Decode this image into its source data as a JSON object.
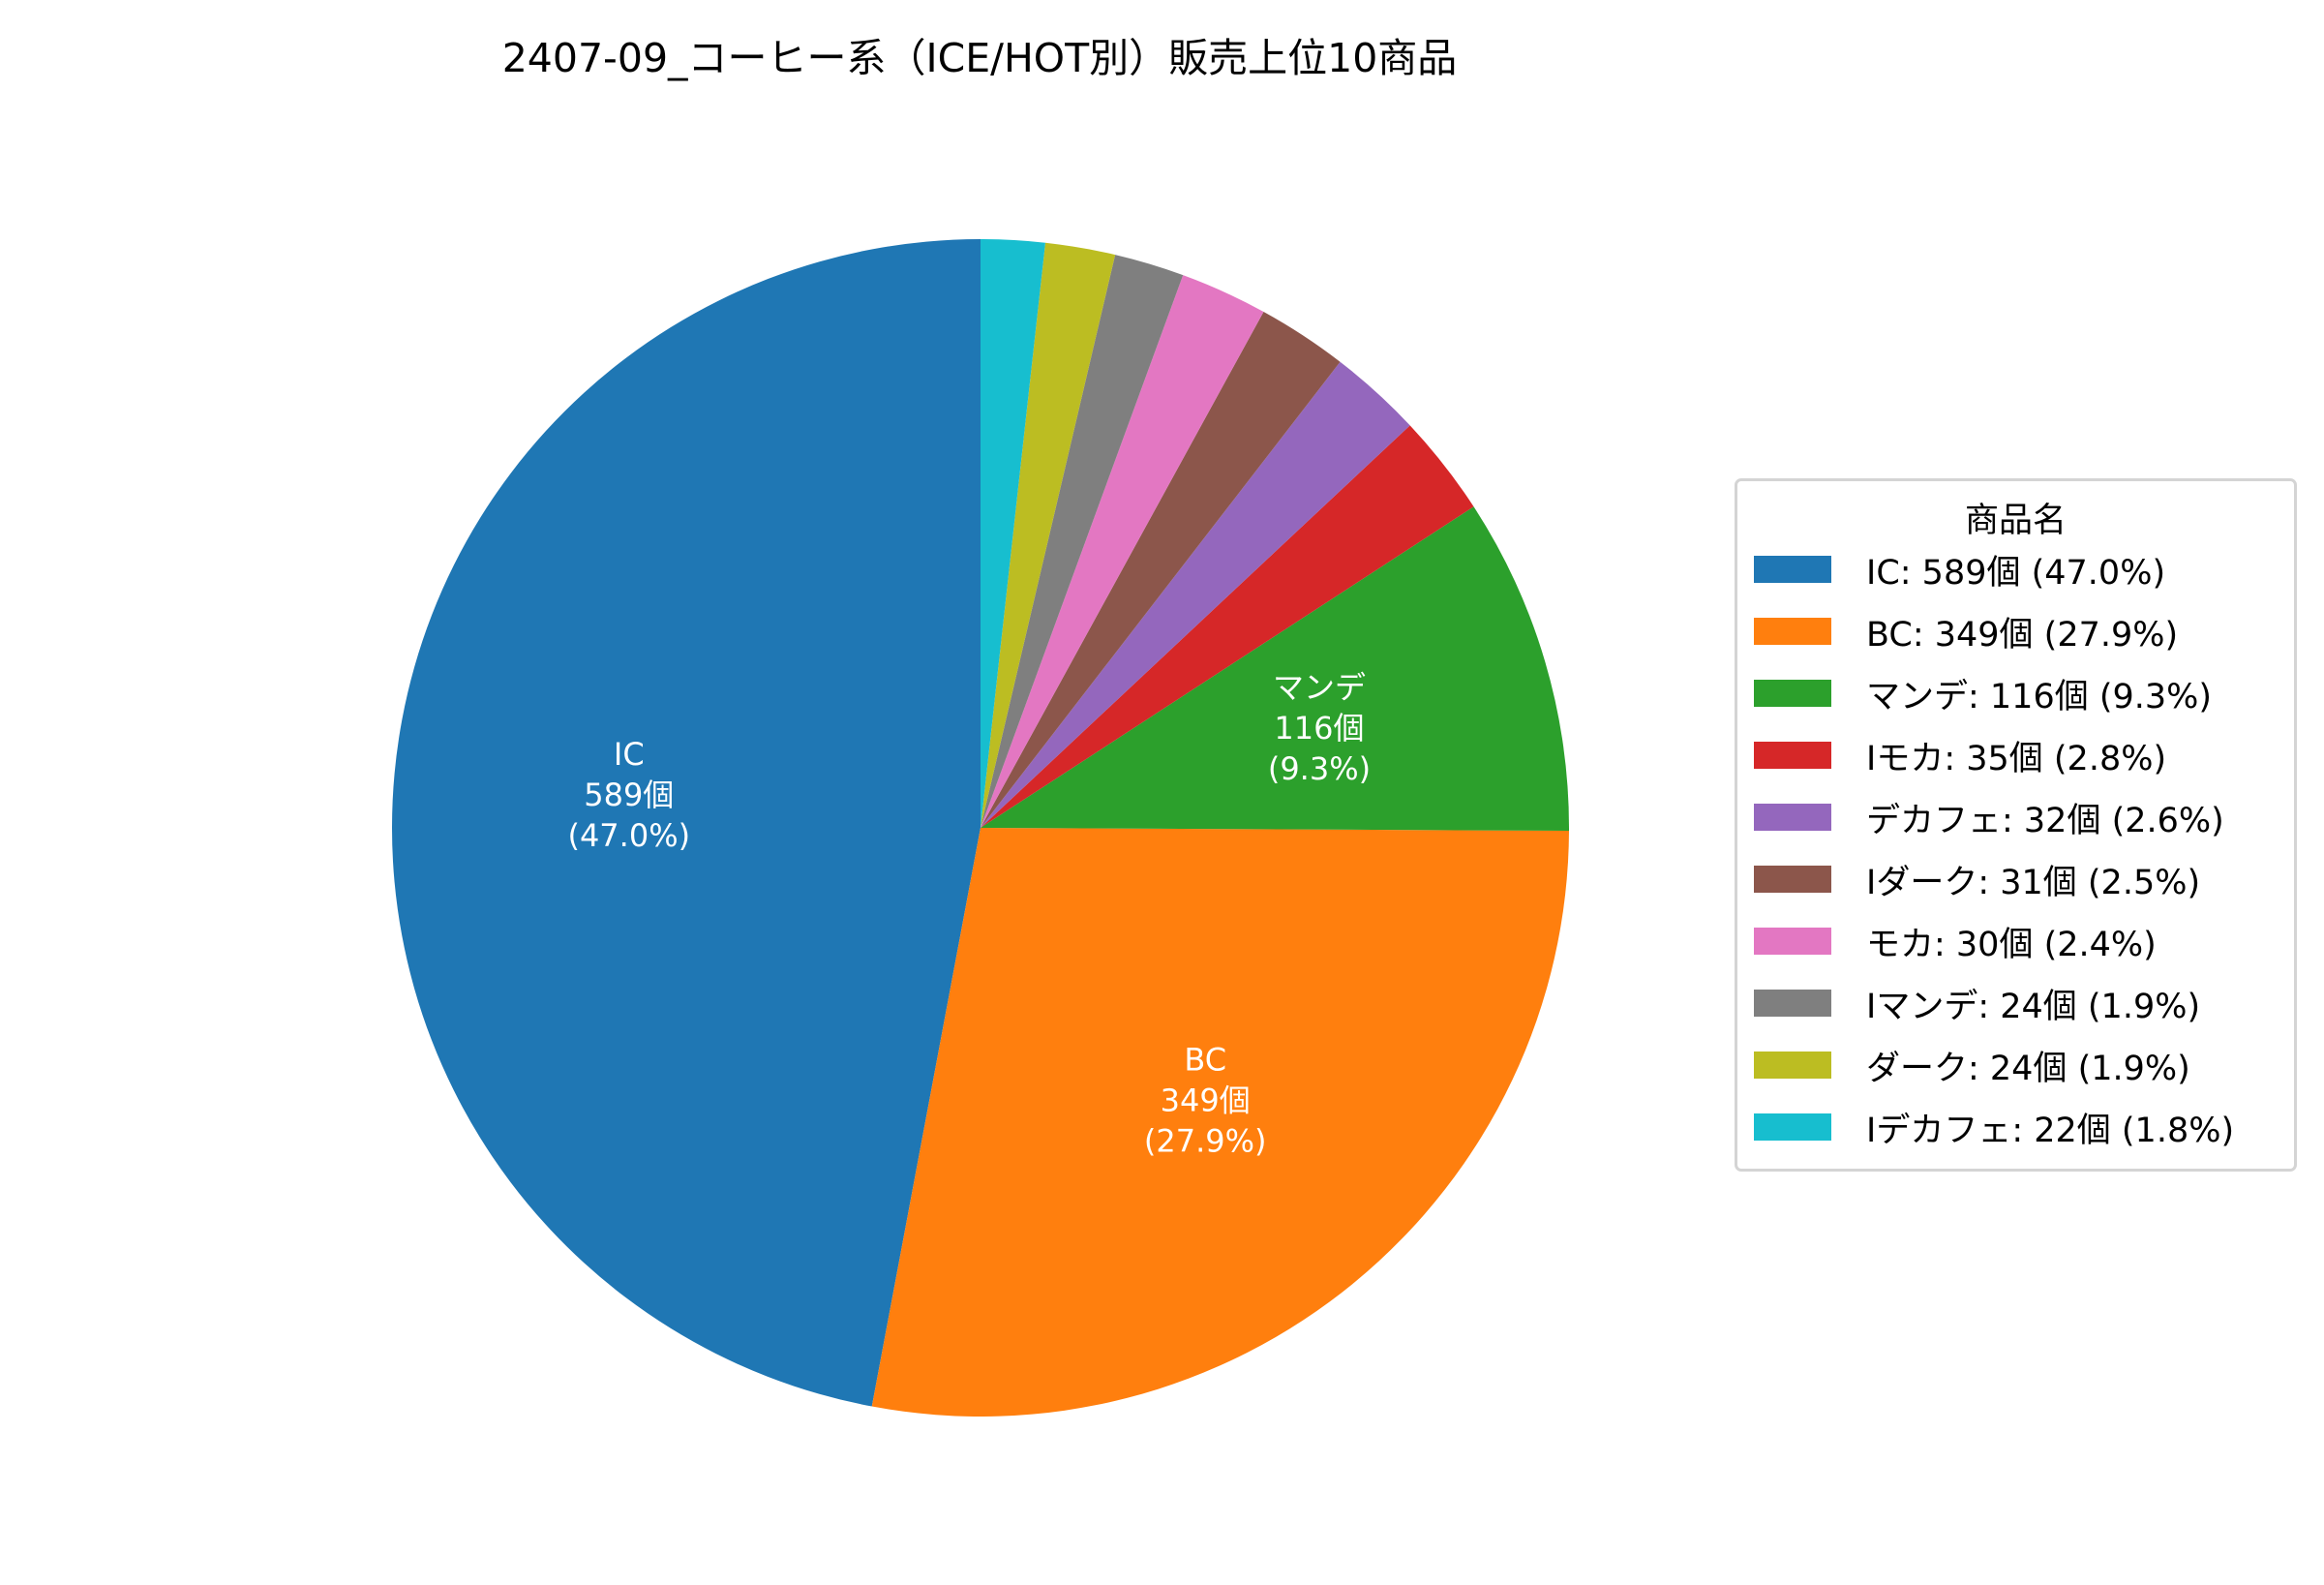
{
  "chart_data": {
    "type": "pie",
    "title": "2407-09_コーヒー系（ICE/HOT別）販売上位10商品",
    "legend_title": "商品名",
    "legend_placement": "right",
    "start_angle_deg": 90,
    "direction": "counterclockwise",
    "unit": "個",
    "slices": [
      {
        "name": "IC",
        "value": 589,
        "percent": "47.0%",
        "color": "#1f77b4",
        "legend": "IC: 589個 (47.0%)",
        "label_lines": [
          "IC",
          "589個",
          "(47.0%)"
        ]
      },
      {
        "name": "BC",
        "value": 349,
        "percent": "27.9%",
        "color": "#ff7f0e",
        "legend": "BC: 349個 (27.9%)",
        "label_lines": [
          "BC",
          "349個",
          "(27.9%)"
        ]
      },
      {
        "name": "マンデ",
        "value": 116,
        "percent": "9.3%",
        "color": "#2ca02c",
        "legend": "マンデ: 116個 (9.3%)",
        "label_lines": [
          "マンデ",
          "116個",
          "(9.3%)"
        ]
      },
      {
        "name": "Iモカ",
        "value": 35,
        "percent": "2.8%",
        "color": "#d62728",
        "legend": "Iモカ: 35個 (2.8%)",
        "label_lines": []
      },
      {
        "name": "デカフェ",
        "value": 32,
        "percent": "2.6%",
        "color": "#9467bd",
        "legend": "デカフェ: 32個 (2.6%)",
        "label_lines": []
      },
      {
        "name": "Iダーク",
        "value": 31,
        "percent": "2.5%",
        "color": "#8c564b",
        "legend": "Iダーク: 31個 (2.5%)",
        "label_lines": []
      },
      {
        "name": "モカ",
        "value": 30,
        "percent": "2.4%",
        "color": "#e377c2",
        "legend": "モカ: 30個 (2.4%)",
        "label_lines": []
      },
      {
        "name": "Iマンデ",
        "value": 24,
        "percent": "1.9%",
        "color": "#7f7f7f",
        "legend": "Iマンデ: 24個 (1.9%)",
        "label_lines": []
      },
      {
        "name": "ダーク",
        "value": 24,
        "percent": "1.9%",
        "color": "#bcbd22",
        "legend": "ダーク: 24個 (1.9%)",
        "label_lines": []
      },
      {
        "name": "Iデカフェ",
        "value": 22,
        "percent": "1.8%",
        "color": "#17becf",
        "legend": "Iデカフェ: 22個 (1.8%)",
        "label_lines": []
      }
    ]
  }
}
